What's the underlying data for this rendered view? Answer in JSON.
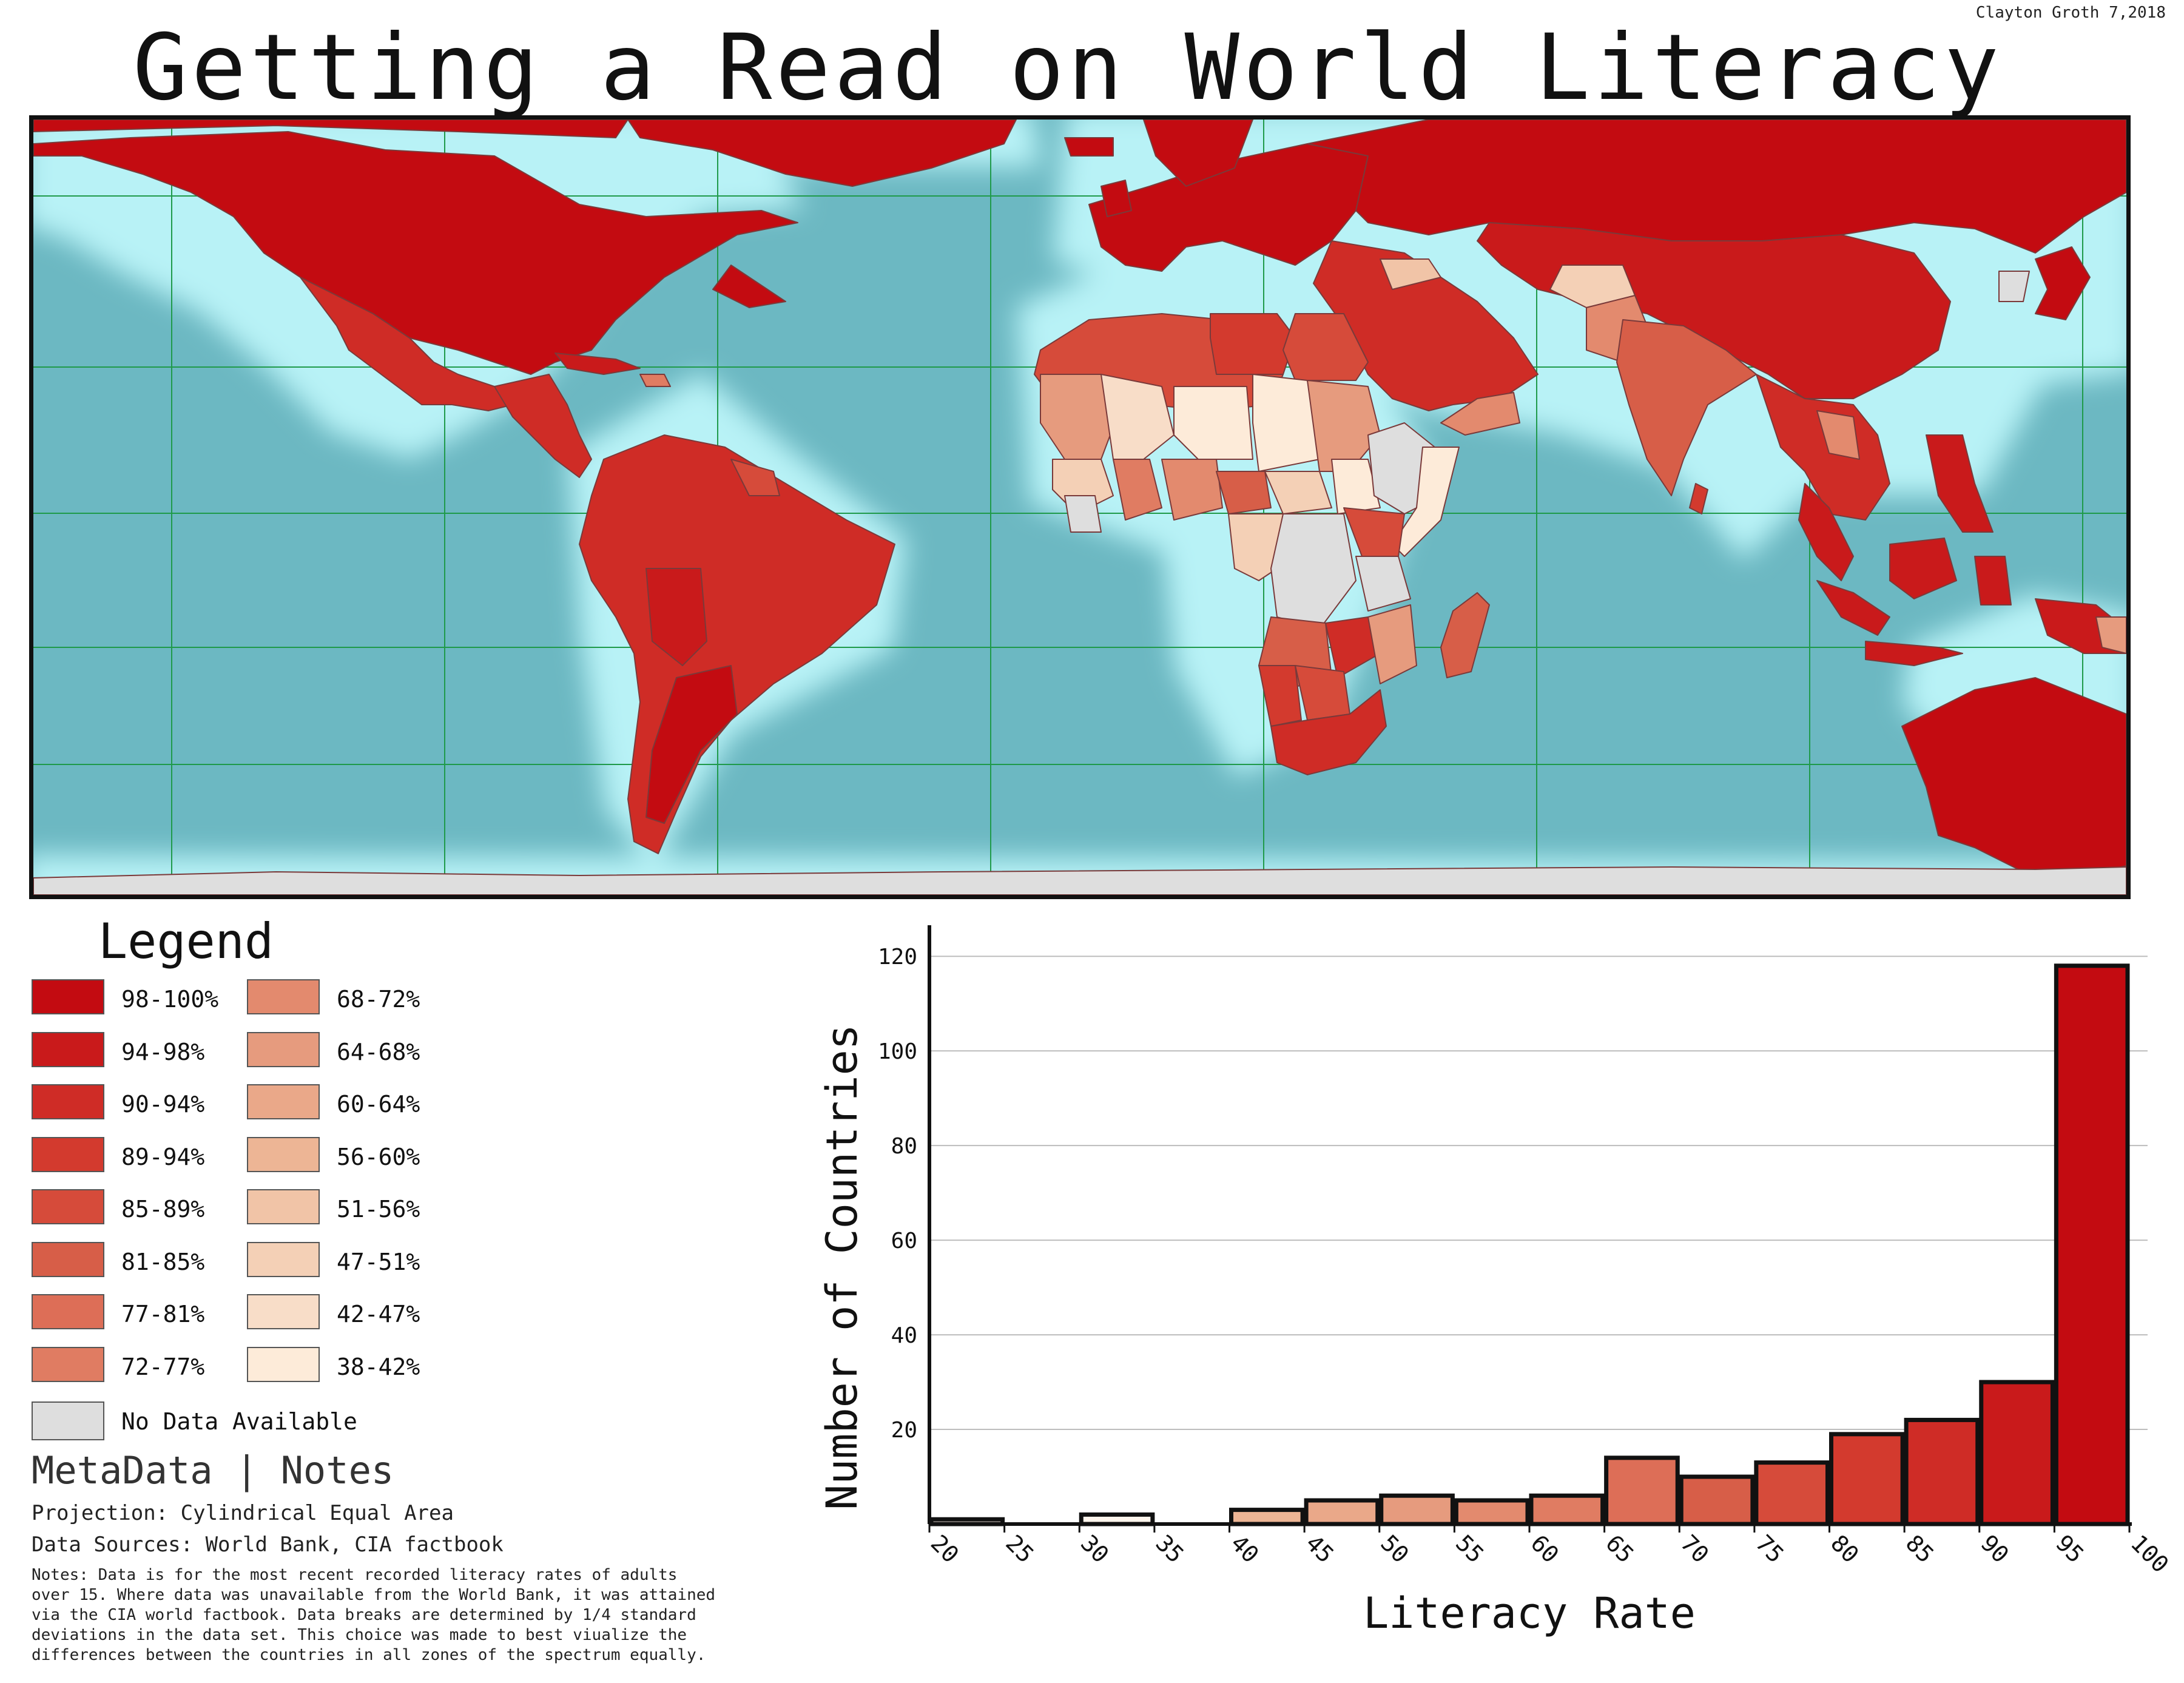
{
  "title": "Getting a Read on World Literacy",
  "author": "Clayton Groth 7,2018",
  "colors": {
    "ocean": "#6cb8c2",
    "coast_glow": "#b8f2f6",
    "no_data": "#dedede",
    "grid": "#1f9a4a",
    "country_border": "#7a3a3a"
  },
  "legend": {
    "title": "Legend",
    "items": [
      {
        "label": "98-100%",
        "color": "#c30b11"
      },
      {
        "label": "94-98%",
        "color": "#c91a1b"
      },
      {
        "label": "90-94%",
        "color": "#cf2c26"
      },
      {
        "label": "89-94%",
        "color": "#d33a2e"
      },
      {
        "label": "85-89%",
        "color": "#d64b3a"
      },
      {
        "label": "81-85%",
        "color": "#d75e48"
      },
      {
        "label": "77-81%",
        "color": "#dd6e57"
      },
      {
        "label": "72-77%",
        "color": "#e07c62"
      },
      {
        "label": "68-72%",
        "color": "#e38a6e"
      },
      {
        "label": "64-68%",
        "color": "#e69b7e"
      },
      {
        "label": "60-64%",
        "color": "#eaa889"
      },
      {
        "label": "56-60%",
        "color": "#edb595"
      },
      {
        "label": "51-56%",
        "color": "#f1c4a7"
      },
      {
        "label": "47-51%",
        "color": "#f4d0b6"
      },
      {
        "label": "42-47%",
        "color": "#f8ddc8"
      },
      {
        "label": "38-42%",
        "color": "#fdebd9"
      }
    ],
    "no_data": {
      "label": "No Data Available",
      "color": "#dedede"
    }
  },
  "metadata": {
    "title": "MetaData | Notes",
    "projection": "Projection: Cylindrical Equal Area",
    "sources": "Data Sources: World Bank, CIA factbook",
    "notes": [
      "Notes: Data is for the most recent recorded literacy rates of adults",
      "over 15. Where data was unavailable from the World Bank, it was attained",
      "via the CIA world factbook. Data breaks are determined by 1/4 standard",
      "deviations in the data set. This choice was made to best viualize the",
      "differences between the countries in all zones of the spectrum equally."
    ]
  },
  "chart_data": {
    "type": "bar",
    "xlabel": "Literacy Rate",
    "ylabel": "Number of Countries",
    "x_ticks": [
      "20",
      "25",
      "30",
      "35",
      "40",
      "45",
      "50",
      "55",
      "60",
      "65",
      "70",
      "75",
      "80",
      "85",
      "90",
      "95",
      "100"
    ],
    "y_ticks": [
      "20",
      "40",
      "60",
      "80",
      "100",
      "120"
    ],
    "xlim": [
      20,
      100
    ],
    "ylim": [
      0,
      124
    ],
    "grid": "horizontal",
    "bins": [
      {
        "x0": 20,
        "x1": 25,
        "value": 1
      },
      {
        "x0": 25,
        "x1": 30,
        "value": 0
      },
      {
        "x0": 30,
        "x1": 35,
        "value": 2
      },
      {
        "x0": 35,
        "x1": 40,
        "value": 0
      },
      {
        "x0": 40,
        "x1": 45,
        "value": 3
      },
      {
        "x0": 45,
        "x1": 50,
        "value": 5
      },
      {
        "x0": 50,
        "x1": 55,
        "value": 6
      },
      {
        "x0": 55,
        "x1": 60,
        "value": 5
      },
      {
        "x0": 60,
        "x1": 65,
        "value": 6
      },
      {
        "x0": 65,
        "x1": 70,
        "value": 14
      },
      {
        "x0": 70,
        "x1": 75,
        "value": 10
      },
      {
        "x0": 75,
        "x1": 80,
        "value": 13
      },
      {
        "x0": 80,
        "x1": 85,
        "value": 19
      },
      {
        "x0": 85,
        "x1": 90,
        "value": 22
      },
      {
        "x0": 90,
        "x1": 95,
        "value": 30
      },
      {
        "x0": 95,
        "x1": 100,
        "value": 118
      }
    ]
  }
}
